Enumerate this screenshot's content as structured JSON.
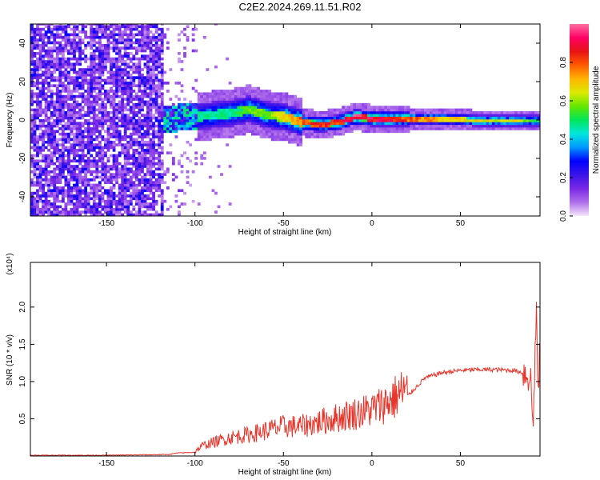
{
  "figure_title": "C2E2.2024.269.11.51.R02",
  "chart_data": [
    {
      "type": "heatmap",
      "xlabel": "Height of straight line (km)",
      "ylabel": "Frequency (Hz)",
      "xlim": [
        -193,
        95
      ],
      "ylim": [
        -50,
        50
      ],
      "xticks": [
        -150,
        -100,
        -50,
        0,
        50
      ],
      "yticks": [
        -40,
        -20,
        0,
        20,
        40
      ],
      "grid": false,
      "colorbar": {
        "label": "Normalized spectral amplitude",
        "range": [
          0,
          1
        ],
        "ticks": [
          "0.0",
          "0.2",
          "0.4",
          "0.6",
          "0.8"
        ],
        "colormap": [
          "#f4e6fa",
          "#b070ea",
          "#7a28e6",
          "#3a14e6",
          "#0000ff",
          "#0096ff",
          "#00e6dc",
          "#00e65a",
          "#64e600",
          "#dcea00",
          "#ffb400",
          "#ff5a00",
          "#e61414",
          "#ff0064",
          "#ff6ea0"
        ]
      },
      "description_ridge": {
        "x": [
          -118,
          -100,
          -80,
          -70,
          -60,
          -50,
          -40,
          -30,
          -20,
          -10,
          0,
          10,
          20,
          40,
          60,
          80,
          95
        ],
        "center_hz": [
          0,
          1,
          3,
          5,
          2,
          1,
          -2,
          -3,
          -2,
          1,
          0,
          0,
          0,
          0,
          -1,
          -1,
          -1
        ],
        "peak_amp": [
          0.45,
          0.5,
          0.5,
          0.6,
          0.6,
          0.7,
          0.85,
          0.9,
          0.9,
          1.0,
          0.95,
          0.95,
          0.85,
          0.75,
          0.7,
          0.7,
          0.5
        ]
      }
    },
    {
      "type": "line",
      "xlabel": "Height of straight line (km)",
      "ylabel": "SNR (10 * v/v)",
      "scale_label": "(x10⁴)",
      "xlim": [
        -193,
        95
      ],
      "ylim": [
        0,
        2.6
      ],
      "xticks": [
        -150,
        -100,
        -50,
        0,
        50
      ],
      "yticks": [
        "0.5",
        "1.0",
        "1.5",
        "2.0"
      ],
      "series_color": "#e8352b",
      "grid": false,
      "series": [
        {
          "x": [
            -193,
            -150,
            -115,
            -110,
            -100,
            -96,
            -90,
            -80,
            -70,
            -60,
            -50,
            -40,
            -30,
            -20,
            -10,
            0,
            10,
            20,
            30,
            40,
            50,
            60,
            70,
            80,
            85,
            88,
            90,
            91,
            92,
            93,
            94,
            95
          ],
          "y": [
            0.01,
            0.01,
            0.02,
            0.04,
            0.05,
            0.12,
            0.16,
            0.22,
            0.25,
            0.3,
            0.35,
            0.35,
            0.4,
            0.45,
            0.5,
            0.55,
            0.65,
            0.8,
            1.05,
            1.12,
            1.15,
            1.16,
            1.16,
            1.15,
            1.12,
            1.1,
            1.0,
            0.3,
            1.2,
            2.0,
            0.7,
            1.6
          ]
        }
      ]
    }
  ]
}
